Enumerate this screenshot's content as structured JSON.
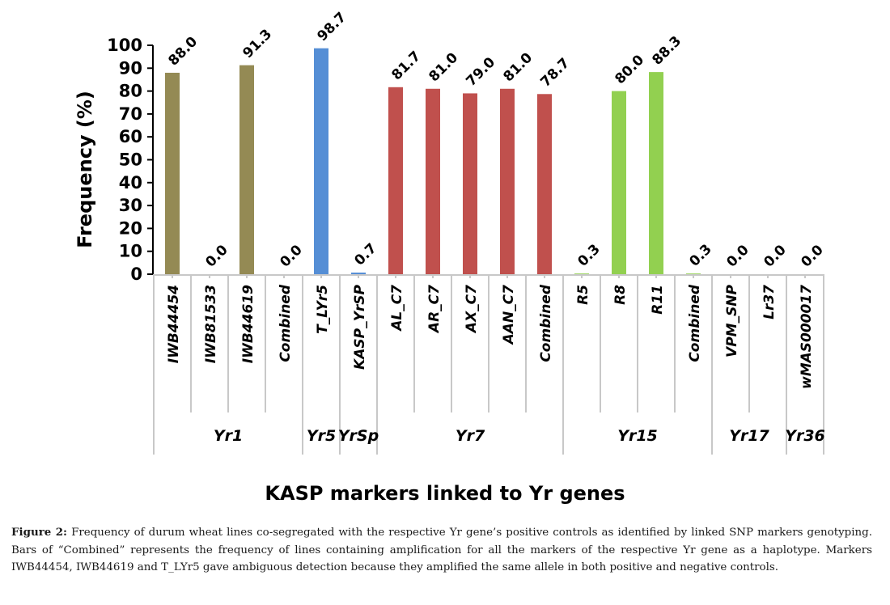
{
  "chart_data": {
    "type": "bar",
    "title": "",
    "ylabel": "Frequency  (%)",
    "xlabel": "KASP markers linked to Yr genes",
    "ylim": [
      0,
      100
    ],
    "yticks": [
      0,
      10,
      20,
      30,
      40,
      50,
      60,
      70,
      80,
      90,
      100
    ],
    "grid": false,
    "legend": null,
    "groups": [
      {
        "name": "Yr1",
        "color": "#948A54",
        "categories": [
          "IWB44454",
          "IWB81533",
          "IWB44619",
          "Combined"
        ],
        "values": [
          88.0,
          0.0,
          91.3,
          0.0
        ]
      },
      {
        "name": "Yr5",
        "color": "#558ED5",
        "categories": [
          "T_LYr5"
        ],
        "values": [
          98.7
        ]
      },
      {
        "name": "YrSp",
        "color": "#558ED5",
        "categories": [
          "KASP_YrSP"
        ],
        "values": [
          0.7
        ]
      },
      {
        "name": "Yr7",
        "color": "#C0504D",
        "categories": [
          "AL_C7",
          "AR_C7",
          "AX_C7",
          "AAN_C7",
          "Combined"
        ],
        "values": [
          81.7,
          81.0,
          79.0,
          81.0,
          78.7
        ]
      },
      {
        "name": "Yr15",
        "color": "#92D050",
        "categories": [
          "R5",
          "R8",
          "R11",
          "Combined"
        ],
        "values": [
          0.3,
          80.0,
          88.3,
          0.3
        ]
      },
      {
        "name": "Yr17",
        "color": "#948A54",
        "categories": [
          "VPM_SNP",
          "Lr37"
        ],
        "values": [
          0.0,
          0.0
        ]
      },
      {
        "name": "Yr36",
        "color": "#948A54",
        "categories": [
          "wMAS000017"
        ],
        "values": [
          0.0
        ]
      }
    ],
    "value_format": "1 decimal"
  },
  "caption": {
    "label": "Figure 2:",
    "text": "Frequency of durum wheat lines co-segregated with the respective Yr gene’s positive controls as identified by linked SNP markers genotyping. Bars of “Combined” represents the frequency of lines containing amplification for all the markers of the respective Yr gene as a haplotype. Markers IWB44454, IWB44619 and T_LYr5 gave ambiguous detection because they amplified the same allele in both positive and negative controls."
  }
}
